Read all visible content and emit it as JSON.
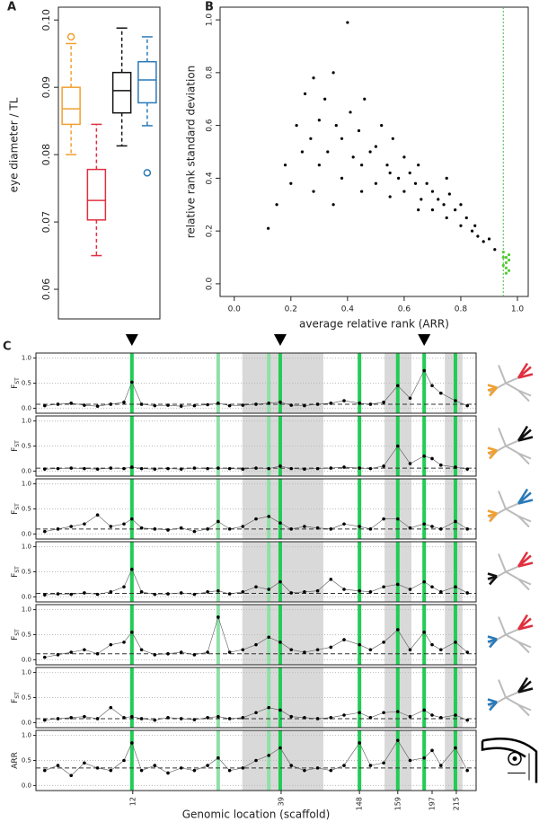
{
  "chart_data": [
    {
      "type": "box",
      "panel": "A",
      "ylabel": "eye diameter / TL",
      "ylim": [
        0.0556,
        0.1019
      ],
      "yticks": [
        {
          "value": 0.06,
          "label": "0.06"
        },
        {
          "value": 0.07,
          "label": "0.07"
        },
        {
          "value": 0.08,
          "label": "0.08"
        },
        {
          "value": 0.09,
          "label": "0.09"
        },
        {
          "value": 0.1,
          "label": "0.10"
        }
      ],
      "boxes": [
        {
          "color": "#f0a030",
          "whislo": 0.08,
          "q1": 0.0845,
          "med": 0.0868,
          "q3": 0.09,
          "whishi": 0.0965,
          "fliers": [
            0.0975
          ]
        },
        {
          "color": "#e03040",
          "whislo": 0.065,
          "q1": 0.0703,
          "med": 0.0732,
          "q3": 0.0778,
          "whishi": 0.0845,
          "fliers": []
        },
        {
          "color": "#111111",
          "whislo": 0.0813,
          "q1": 0.0862,
          "med": 0.0895,
          "q3": 0.0922,
          "whishi": 0.0988,
          "fliers": []
        },
        {
          "color": "#2a7ab8",
          "whislo": 0.0843,
          "q1": 0.0877,
          "med": 0.0911,
          "q3": 0.0938,
          "whishi": 0.0975,
          "fliers": [
            0.0773
          ]
        }
      ]
    },
    {
      "type": "scatter",
      "panel": "B",
      "xlabel": "average relative rank (ARR)",
      "ylabel": "relative rank standard deviation",
      "xlim": [
        -0.05,
        1.038
      ],
      "ylim": [
        -0.048,
        1.048
      ],
      "xticks": [
        {
          "value": 0,
          "label": "0.0"
        },
        {
          "value": 0.2,
          "label": "0.2"
        },
        {
          "value": 0.4,
          "label": "0.4"
        },
        {
          "value": 0.6,
          "label": "0.6"
        },
        {
          "value": 0.8,
          "label": "0.8"
        },
        {
          "value": 1,
          "label": "1.0"
        }
      ],
      "yticks": [
        {
          "value": 0,
          "label": "0.0"
        },
        {
          "value": 0.2,
          "label": "0.2"
        },
        {
          "value": 0.4,
          "label": "0.4"
        },
        {
          "value": 0.6,
          "label": "0.6"
        },
        {
          "value": 0.8,
          "label": "0.8"
        },
        {
          "value": 1,
          "label": "1.0"
        }
      ],
      "threshold": {
        "x": 0.95,
        "color": "#44bb44"
      },
      "series": [
        {
          "color": "#000000",
          "x": [
            0.12,
            0.15,
            0.18,
            0.2,
            0.22,
            0.24,
            0.25,
            0.27,
            0.28,
            0.3,
            0.3,
            0.32,
            0.33,
            0.35,
            0.36,
            0.38,
            0.38,
            0.4,
            0.41,
            0.42,
            0.44,
            0.45,
            0.46,
            0.48,
            0.5,
            0.5,
            0.52,
            0.54,
            0.55,
            0.56,
            0.58,
            0.6,
            0.6,
            0.62,
            0.64,
            0.65,
            0.66,
            0.68,
            0.7,
            0.7,
            0.72,
            0.74,
            0.75,
            0.76,
            0.78,
            0.8,
            0.8,
            0.82,
            0.84,
            0.85,
            0.86,
            0.88,
            0.9,
            0.92,
            0.35,
            0.28,
            0.45,
            0.55,
            0.65,
            0.75
          ],
          "values": [
            0.21,
            0.3,
            0.45,
            0.38,
            0.6,
            0.5,
            0.72,
            0.55,
            0.78,
            0.62,
            0.45,
            0.7,
            0.5,
            0.8,
            0.6,
            0.55,
            0.4,
            0.99,
            0.65,
            0.48,
            0.58,
            0.45,
            0.7,
            0.5,
            0.52,
            0.38,
            0.6,
            0.45,
            0.42,
            0.55,
            0.4,
            0.48,
            0.35,
            0.42,
            0.38,
            0.45,
            0.32,
            0.38,
            0.35,
            0.28,
            0.32,
            0.3,
            0.25,
            0.34,
            0.28,
            0.3,
            0.22,
            0.25,
            0.2,
            0.22,
            0.18,
            0.16,
            0.17,
            0.13,
            0.3,
            0.35,
            0.35,
            0.33,
            0.28,
            0.4
          ]
        },
        {
          "color": "#55cc33",
          "x": [
            0.95,
            0.95,
            0.96,
            0.96,
            0.96,
            0.97,
            0.97,
            0.95,
            0.96,
            0.97
          ],
          "values": [
            0.12,
            0.1,
            0.08,
            0.06,
            0.1,
            0.05,
            0.09,
            0.07,
            0.04,
            0.11
          ]
        }
      ]
    },
    {
      "type": "tracks",
      "panel": "C",
      "xlabel": "Genomic location (scaffold)",
      "xlim": [
        0,
        100
      ],
      "ylim": [
        -0.1,
        1.1
      ],
      "yticks": [
        {
          "value": 0,
          "label": "0.0"
        },
        {
          "value": 0.5,
          "label": "0.5"
        },
        {
          "value": 1,
          "label": "1.0"
        }
      ],
      "xticks": [
        {
          "value": 22,
          "label": "12"
        },
        {
          "value": 55.7,
          "label": "39"
        },
        {
          "value": 73.5,
          "label": "148"
        },
        {
          "value": 82.2,
          "label": "159"
        },
        {
          "value": 90,
          "label": "197"
        },
        {
          "value": 95.5,
          "label": "215"
        }
      ],
      "shaded": [
        [
          46.9,
          65.3
        ],
        [
          79.2,
          85.3
        ],
        [
          92.9,
          96.9
        ]
      ],
      "highlights": [
        {
          "x": 21.8,
          "color": "#22cc55"
        },
        {
          "x": 41.4,
          "color": "#8fe0a8"
        },
        {
          "x": 52.9,
          "color": "#8fe0a8"
        },
        {
          "x": 55.5,
          "color": "#22cc55"
        },
        {
          "x": 73.5,
          "color": "#22cc55"
        },
        {
          "x": 82.2,
          "color": "#22cc55"
        },
        {
          "x": 88.2,
          "color": "#22cc55"
        },
        {
          "x": 95.3,
          "color": "#22cc55"
        }
      ],
      "markers": [
        21.8,
        55.5,
        88.2
      ],
      "x": [
        2,
        5,
        8,
        11,
        14,
        17,
        20,
        21.8,
        24,
        27,
        30,
        33,
        36,
        39,
        41.4,
        44,
        47,
        50,
        52.9,
        55.5,
        58,
        61,
        64,
        67,
        70,
        73.5,
        76,
        79,
        82.2,
        85,
        88.2,
        90,
        92,
        95.3,
        98
      ],
      "tracks": [
        {
          "ylabel": "F",
          "ylabel_sub": "ST",
          "mean": 0.08,
          "values": [
            0.05,
            0.08,
            0.1,
            0.06,
            0.04,
            0.08,
            0.12,
            0.52,
            0.08,
            0.05,
            0.06,
            0.04,
            0.05,
            0.07,
            0.1,
            0.05,
            0.06,
            0.08,
            0.1,
            0.12,
            0.06,
            0.05,
            0.08,
            0.1,
            0.15,
            0.1,
            0.08,
            0.12,
            0.45,
            0.2,
            0.75,
            0.45,
            0.3,
            0.15,
            0.05
          ]
        },
        {
          "ylabel": "F",
          "ylabel_sub": "ST",
          "mean": 0.06,
          "values": [
            0.04,
            0.05,
            0.06,
            0.05,
            0.04,
            0.06,
            0.05,
            0.08,
            0.05,
            0.04,
            0.05,
            0.04,
            0.06,
            0.05,
            0.06,
            0.05,
            0.04,
            0.06,
            0.05,
            0.1,
            0.05,
            0.04,
            0.05,
            0.06,
            0.08,
            0.06,
            0.05,
            0.1,
            0.5,
            0.15,
            0.3,
            0.25,
            0.12,
            0.08,
            0.04
          ]
        },
        {
          "ylabel": "F",
          "ylabel_sub": "ST",
          "mean": 0.1,
          "values": [
            0.05,
            0.1,
            0.15,
            0.2,
            0.38,
            0.15,
            0.2,
            0.3,
            0.12,
            0.1,
            0.08,
            0.12,
            0.05,
            0.1,
            0.25,
            0.1,
            0.15,
            0.3,
            0.35,
            0.22,
            0.1,
            0.15,
            0.12,
            0.1,
            0.2,
            0.15,
            0.1,
            0.3,
            0.3,
            0.12,
            0.2,
            0.15,
            0.1,
            0.25,
            0.1
          ]
        },
        {
          "ylabel": "F",
          "ylabel_sub": "ST",
          "mean": 0.07,
          "values": [
            0.04,
            0.06,
            0.05,
            0.08,
            0.05,
            0.1,
            0.2,
            0.55,
            0.1,
            0.05,
            0.06,
            0.08,
            0.05,
            0.1,
            0.12,
            0.06,
            0.1,
            0.2,
            0.15,
            0.3,
            0.08,
            0.1,
            0.12,
            0.35,
            0.15,
            0.12,
            0.1,
            0.2,
            0.25,
            0.15,
            0.3,
            0.2,
            0.1,
            0.2,
            0.08
          ]
        },
        {
          "ylabel": "F",
          "ylabel_sub": "ST",
          "mean": 0.12,
          "values": [
            0.05,
            0.1,
            0.15,
            0.2,
            0.12,
            0.3,
            0.35,
            0.55,
            0.2,
            0.1,
            0.12,
            0.15,
            0.1,
            0.15,
            0.85,
            0.15,
            0.2,
            0.3,
            0.45,
            0.35,
            0.2,
            0.15,
            0.2,
            0.25,
            0.4,
            0.3,
            0.2,
            0.35,
            0.6,
            0.2,
            0.55,
            0.3,
            0.2,
            0.35,
            0.15
          ]
        },
        {
          "ylabel": "F",
          "ylabel_sub": "ST",
          "mean": 0.08,
          "values": [
            0.05,
            0.08,
            0.1,
            0.12,
            0.08,
            0.3,
            0.1,
            0.12,
            0.08,
            0.05,
            0.1,
            0.08,
            0.06,
            0.1,
            0.12,
            0.08,
            0.1,
            0.2,
            0.3,
            0.25,
            0.12,
            0.1,
            0.08,
            0.1,
            0.15,
            0.2,
            0.1,
            0.2,
            0.22,
            0.12,
            0.25,
            0.15,
            0.1,
            0.15,
            0.05
          ]
        },
        {
          "ylabel": "ARR",
          "mean": 0.35,
          "values": [
            0.3,
            0.4,
            0.2,
            0.45,
            0.35,
            0.3,
            0.5,
            0.85,
            0.3,
            0.4,
            0.25,
            0.35,
            0.3,
            0.4,
            0.55,
            0.3,
            0.35,
            0.5,
            0.6,
            0.75,
            0.4,
            0.3,
            0.35,
            0.3,
            0.4,
            0.85,
            0.4,
            0.45,
            0.9,
            0.5,
            0.55,
            0.7,
            0.4,
            0.75,
            0.3
          ]
        }
      ]
    }
  ]
}
